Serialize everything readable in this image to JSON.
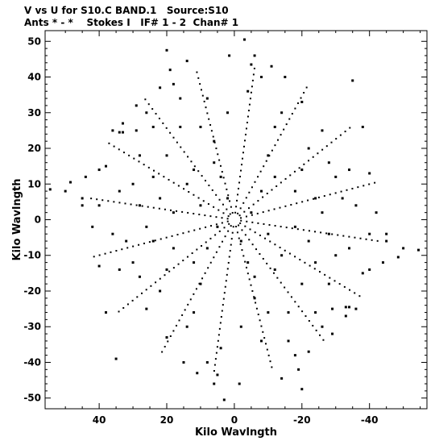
{
  "header": {
    "title": "V vs U for S10.C BAND.1   Source:S10",
    "subtitle": "Ants * - *    Stokes I   IF# 1 - 2  Chan# 1"
  },
  "chart_data": {
    "type": "scatter",
    "title": "V vs U for S10.C BAND.1   Source:S10",
    "subtitle": "Ants * - *    Stokes I   IF# 1 - 2  Chan# 1",
    "xlabel": "Kilo Wavlngth",
    "ylabel": "Kilo Wavlngth",
    "xlim": [
      56,
      -57
    ],
    "ylim": [
      -53,
      53
    ],
    "xticks": [
      40,
      20,
      0,
      -20,
      -40
    ],
    "yticks": [
      50,
      40,
      30,
      20,
      10,
      0,
      -10,
      -20,
      -30,
      -40,
      -50
    ],
    "grid": false,
    "marker_color": "#000000",
    "series": [
      {
        "values": [
          [
            54.5,
            8.5
          ],
          [
            -54.5,
            -8.5
          ],
          [
            48.5,
            10.5
          ],
          [
            -48.5,
            -10.5
          ],
          [
            45,
            4
          ],
          [
            -45,
            -4
          ],
          [
            42,
            -2
          ],
          [
            -42,
            2
          ],
          [
            38,
            -26
          ],
          [
            -38,
            26
          ],
          [
            35,
            -39
          ],
          [
            -35,
            39
          ],
          [
            33,
            24.5
          ],
          [
            -33,
            -24.5
          ],
          [
            29,
            25
          ],
          [
            -29,
            -25
          ],
          [
            20,
            47.5
          ],
          [
            -20,
            -47.5
          ],
          [
            -3,
            50.5
          ],
          [
            3,
            -50.5
          ],
          [
            6,
            -46
          ],
          [
            -6,
            46
          ],
          [
            5,
            -43.5
          ],
          [
            -5,
            43.5
          ],
          [
            -1.5,
            -46
          ],
          [
            1.5,
            46
          ],
          [
            -19,
            -42
          ],
          [
            19,
            42
          ],
          [
            -14,
            -44.5
          ],
          [
            14,
            44.5
          ],
          [
            -38,
            -15
          ],
          [
            38,
            15
          ],
          [
            -44,
            -12
          ],
          [
            44,
            12
          ],
          [
            -50,
            -8
          ],
          [
            50,
            8
          ],
          [
            -34,
            -24.5
          ],
          [
            34,
            24.5
          ],
          [
            -36,
            -25
          ],
          [
            36,
            25
          ],
          [
            -22,
            -37
          ],
          [
            22,
            37
          ],
          [
            -29,
            -32
          ],
          [
            29,
            32
          ],
          [
            -33,
            -27
          ],
          [
            33,
            27
          ],
          [
            -40,
            -14
          ],
          [
            40,
            14
          ],
          [
            -45,
            -6
          ],
          [
            45,
            6
          ],
          [
            -40,
            13
          ],
          [
            40,
            -13
          ],
          [
            -26,
            25
          ],
          [
            26,
            -25
          ],
          [
            -20,
            33
          ],
          [
            20,
            -33
          ],
          [
            -11,
            43
          ],
          [
            11,
            -43
          ],
          [
            -15,
            40
          ],
          [
            15,
            -40
          ],
          [
            12,
            14
          ],
          [
            -12,
            -14
          ],
          [
            24,
            12
          ],
          [
            -24,
            -12
          ],
          [
            28,
            4
          ],
          [
            -28,
            -4
          ],
          [
            18,
            -8
          ],
          [
            -18,
            8
          ],
          [
            10,
            -18
          ],
          [
            -10,
            18
          ],
          [
            6,
            22
          ],
          [
            -6,
            -22
          ],
          [
            16,
            26
          ],
          [
            -16,
            -26
          ],
          [
            22,
            -20
          ],
          [
            -22,
            20
          ],
          [
            30,
            -12
          ],
          [
            -30,
            12
          ],
          [
            26,
            30
          ],
          [
            -26,
            -30
          ],
          [
            8,
            34
          ],
          [
            -8,
            -34
          ],
          [
            14,
            -30
          ],
          [
            -14,
            30
          ],
          [
            32,
            -6
          ],
          [
            -32,
            6
          ],
          [
            4,
            12
          ],
          [
            -4,
            -12
          ],
          [
            10,
            4
          ],
          [
            -10,
            -4
          ],
          [
            8,
            -8
          ],
          [
            -8,
            8
          ],
          [
            2,
            6
          ],
          [
            -2,
            -6
          ],
          [
            5,
            -2
          ],
          [
            -5,
            2
          ],
          [
            18,
            2
          ],
          [
            -18,
            -2
          ],
          [
            12,
            -26
          ],
          [
            -12,
            26
          ],
          [
            20,
            18
          ],
          [
            -20,
            -18
          ],
          [
            28,
            18
          ],
          [
            -28,
            -18
          ],
          [
            24,
            26
          ],
          [
            -24,
            -26
          ],
          [
            34,
            8
          ],
          [
            -34,
            -8
          ],
          [
            36,
            -4
          ],
          [
            -36,
            4
          ],
          [
            16,
            34
          ],
          [
            -16,
            -34
          ],
          [
            2,
            30
          ],
          [
            -2,
            -30
          ],
          [
            4,
            -36
          ],
          [
            -4,
            36
          ],
          [
            24,
            -6
          ],
          [
            -24,
            6
          ],
          [
            14,
            10
          ],
          [
            -14,
            -10
          ],
          [
            6,
            16
          ],
          [
            -6,
            -16
          ],
          [
            12,
            -12
          ],
          [
            -12,
            12
          ],
          [
            20,
            -14
          ],
          [
            -20,
            14
          ],
          [
            26,
            -2
          ],
          [
            -26,
            2
          ],
          [
            30,
            10
          ],
          [
            -30,
            -10
          ],
          [
            10,
            26
          ],
          [
            -10,
            -26
          ],
          [
            18,
            38
          ],
          [
            -18,
            -38
          ],
          [
            8,
            -40
          ],
          [
            -8,
            40
          ],
          [
            28,
            -16
          ],
          [
            -28,
            16
          ],
          [
            34,
            -14
          ],
          [
            -34,
            14
          ],
          [
            40,
            4
          ],
          [
            -40,
            -4
          ],
          [
            22,
            6
          ],
          [
            -22,
            -6
          ]
        ]
      }
    ]
  }
}
